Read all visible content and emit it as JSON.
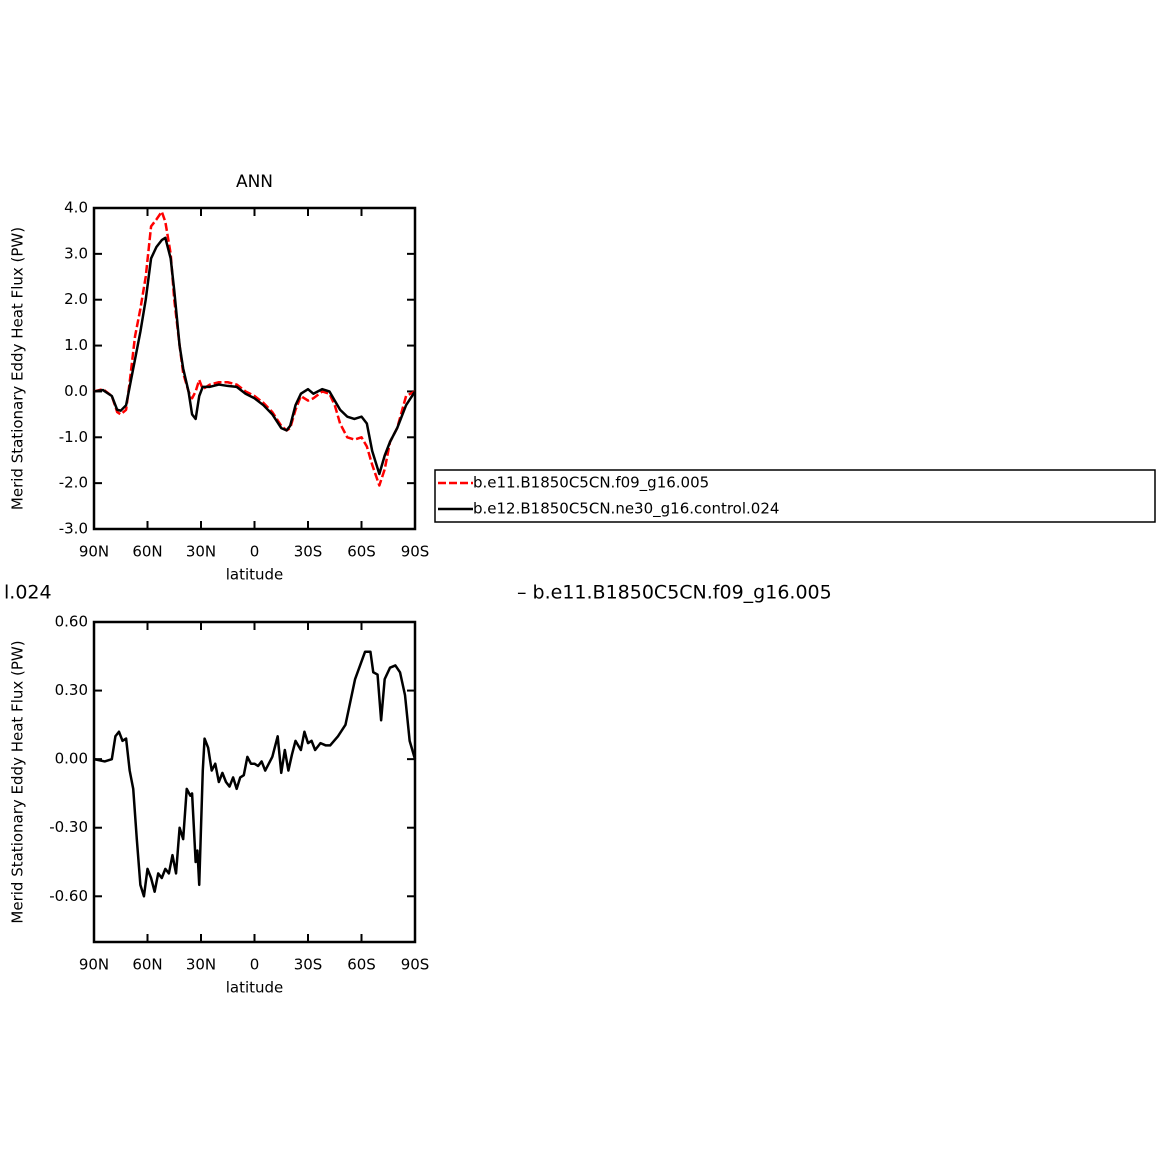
{
  "chart_data": [
    {
      "type": "line",
      "title": "ANN",
      "xlabel": "latitude",
      "ylabel": "Merid Stationary Eddy Heat Flux (PW)",
      "x": [
        90,
        85,
        80,
        77,
        75,
        72,
        70,
        67,
        64,
        61,
        58,
        55,
        52,
        50,
        47,
        45,
        42,
        40,
        37,
        35,
        33,
        31,
        29,
        25,
        20,
        15,
        10,
        5,
        0,
        -5,
        -10,
        -15,
        -18,
        -20,
        -23,
        -26,
        -30,
        -33,
        -38,
        -42,
        -45,
        -48,
        -52,
        -56,
        -60,
        -63,
        -66,
        -70,
        -73,
        -76,
        -80,
        -85,
        -90
      ],
      "series": [
        {
          "name": "b.e11.B1850C5CN.f09_g16.005",
          "color": "#ff0000",
          "dashed": true,
          "values": [
            0,
            0.05,
            -0.1,
            -0.45,
            -0.5,
            -0.4,
            0.2,
            1.2,
            1.8,
            2.5,
            3.6,
            3.75,
            3.92,
            3.7,
            3.0,
            2.0,
            1.0,
            0.4,
            0.0,
            -0.15,
            0.0,
            0.25,
            0.05,
            0.15,
            0.2,
            0.2,
            0.15,
            0.0,
            -0.1,
            -0.25,
            -0.45,
            -0.75,
            -0.85,
            -0.8,
            -0.4,
            -0.1,
            -0.2,
            -0.15,
            0.0,
            -0.05,
            -0.3,
            -0.7,
            -1.0,
            -1.05,
            -1.0,
            -1.2,
            -1.6,
            -2.05,
            -1.7,
            -1.1,
            -0.8,
            -0.1,
            0
          ]
        },
        {
          "name": "b.e12.B1850C5CN.ne30_g16.control.024",
          "color": "#000000",
          "dashed": false,
          "values": [
            0,
            0.03,
            -0.1,
            -0.4,
            -0.42,
            -0.3,
            0.1,
            0.7,
            1.3,
            2.0,
            2.9,
            3.15,
            3.3,
            3.35,
            2.9,
            2.2,
            1.0,
            0.5,
            0.0,
            -0.5,
            -0.6,
            -0.1,
            0.1,
            0.1,
            0.15,
            0.12,
            0.1,
            -0.05,
            -0.15,
            -0.3,
            -0.5,
            -0.8,
            -0.85,
            -0.75,
            -0.3,
            -0.05,
            0.05,
            -0.05,
            0.05,
            0.0,
            -0.2,
            -0.4,
            -0.55,
            -0.6,
            -0.55,
            -0.7,
            -1.3,
            -1.8,
            -1.4,
            -1.1,
            -0.8,
            -0.3,
            0
          ]
        }
      ],
      "xlim": [
        90,
        -90
      ],
      "xticks": [
        {
          "value": 90,
          "label": "90N"
        },
        {
          "value": 60,
          "label": "60N"
        },
        {
          "value": 30,
          "label": "30N"
        },
        0,
        {
          "value": -30,
          "label": "30S"
        },
        {
          "value": -60,
          "label": "60S"
        },
        {
          "value": -90,
          "label": "90S"
        }
      ],
      "ylim": [
        -3,
        4
      ],
      "yticks": [
        {
          "value": 4,
          "label": "4.0"
        },
        {
          "value": 3,
          "label": "3.0"
        },
        {
          "value": 2,
          "label": "2.0"
        },
        {
          "value": 1,
          "label": "1.0"
        },
        {
          "value": 0,
          "label": "0.0"
        },
        {
          "value": -1,
          "label": "-1.0"
        },
        {
          "value": -2,
          "label": "-2.0"
        },
        {
          "value": -3,
          "label": "-3.0"
        }
      ]
    },
    {
      "type": "line",
      "subtitle_left": "l.024",
      "subtitle_right": "– b.e11.B1850C5CN.f09_g16.005",
      "xlabel": "latitude",
      "ylabel": "Merid Stationary Eddy Heat Flux (PW)",
      "x": [
        90,
        84,
        80,
        78,
        76,
        74,
        72,
        70,
        68,
        66,
        64,
        62,
        60,
        58,
        56,
        54,
        52,
        50,
        48,
        46,
        44,
        42,
        40,
        38,
        36,
        35,
        34,
        33,
        32,
        31,
        30,
        29,
        28,
        26,
        24,
        22,
        20,
        18,
        16,
        14,
        12,
        10,
        8,
        6,
        4,
        2,
        0,
        -2,
        -4,
        -6,
        -8,
        -10,
        -13,
        -15,
        -17,
        -19,
        -21,
        -23,
        -26,
        -28,
        -30,
        -32,
        -34,
        -37,
        -40,
        -42.4,
        -46.8,
        -51,
        -56.4,
        -62,
        -65,
        -66.6,
        -69,
        -71,
        -73,
        -76,
        -79,
        -81.6,
        -84.4,
        -87,
        -90
      ],
      "series": [
        {
          "color": "#000000",
          "values": [
            0,
            -0.01,
            0,
            0.1,
            0.12,
            0.08,
            0.09,
            -0.05,
            -0.13,
            -0.35,
            -0.55,
            -0.6,
            -0.48,
            -0.52,
            -0.58,
            -0.5,
            -0.52,
            -0.48,
            -0.5,
            -0.42,
            -0.5,
            -0.3,
            -0.35,
            -0.13,
            -0.16,
            -0.15,
            -0.3,
            -0.45,
            -0.4,
            -0.55,
            -0.3,
            -0.05,
            0.09,
            0.05,
            -0.05,
            -0.02,
            -0.1,
            -0.06,
            -0.1,
            -0.12,
            -0.08,
            -0.13,
            -0.08,
            -0.07,
            0.01,
            -0.02,
            -0.02,
            -0.03,
            -0.01,
            -0.05,
            -0.02,
            0.01,
            0.1,
            -0.06,
            0.04,
            -0.05,
            0.02,
            0.08,
            0.04,
            0.12,
            0.07,
            0.08,
            0.04,
            0.07,
            0.06,
            0.06,
            0.1,
            0.15,
            0.35,
            0.47,
            0.47,
            0.38,
            0.37,
            0.17,
            0.35,
            0.4,
            0.41,
            0.38,
            0.28,
            0.08,
            0
          ]
        }
      ],
      "xlim": [
        90,
        -90
      ],
      "xticks": [
        {
          "value": 90,
          "label": "90N"
        },
        {
          "value": 60,
          "label": "60N"
        },
        {
          "value": 30,
          "label": "30N"
        },
        0,
        {
          "value": -30,
          "label": "30S"
        },
        {
          "value": -60,
          "label": "60S"
        },
        {
          "value": -90,
          "label": "90S"
        }
      ],
      "ylim": [
        -0.8,
        0.6
      ],
      "yticks": [
        {
          "value": 0.6,
          "label": "0.60"
        },
        {
          "value": 0.3,
          "label": "0.30"
        },
        {
          "value": 0,
          "label": "0.00"
        },
        {
          "value": -0.3,
          "label": "-0.30"
        },
        {
          "value": -0.6,
          "label": "-0.60"
        }
      ]
    }
  ]
}
